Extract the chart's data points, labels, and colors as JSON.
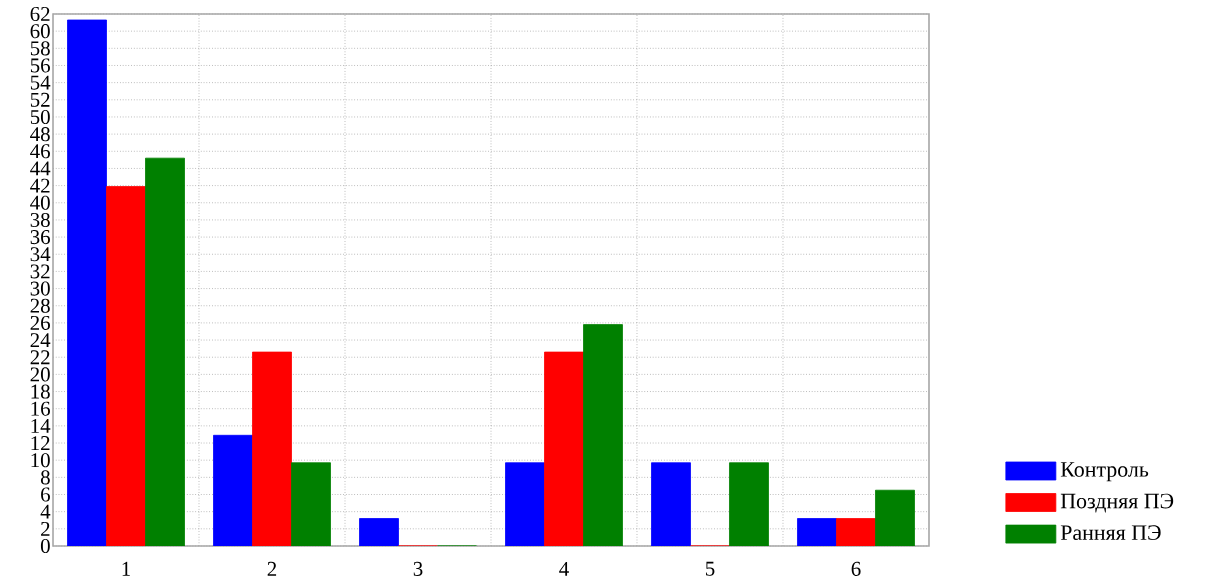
{
  "chart_data": {
    "type": "bar",
    "categories": [
      "1",
      "2",
      "3",
      "4",
      "5",
      "6"
    ],
    "series": [
      {
        "name": "Контроль",
        "color": "#0000ff",
        "values": [
          61.3,
          12.9,
          3.2,
          9.7,
          9.7,
          3.2
        ]
      },
      {
        "name": "Поздняя ПЭ",
        "color": "#ff0000",
        "values": [
          41.9,
          22.6,
          0,
          22.6,
          0,
          3.2
        ]
      },
      {
        "name": "Ранняя ПЭ",
        "color": "#008000",
        "values": [
          45.2,
          9.7,
          0,
          25.8,
          9.7,
          6.5
        ]
      }
    ],
    "ylim": [
      0,
      62
    ],
    "yticks": [
      0,
      2,
      4,
      6,
      8,
      10,
      12,
      14,
      16,
      18,
      20,
      22,
      24,
      26,
      28,
      30,
      32,
      34,
      36,
      38,
      40,
      42,
      44,
      46,
      48,
      50,
      52,
      54,
      56,
      58,
      60,
      62
    ],
    "grid": true,
    "legend": "bottom right"
  }
}
